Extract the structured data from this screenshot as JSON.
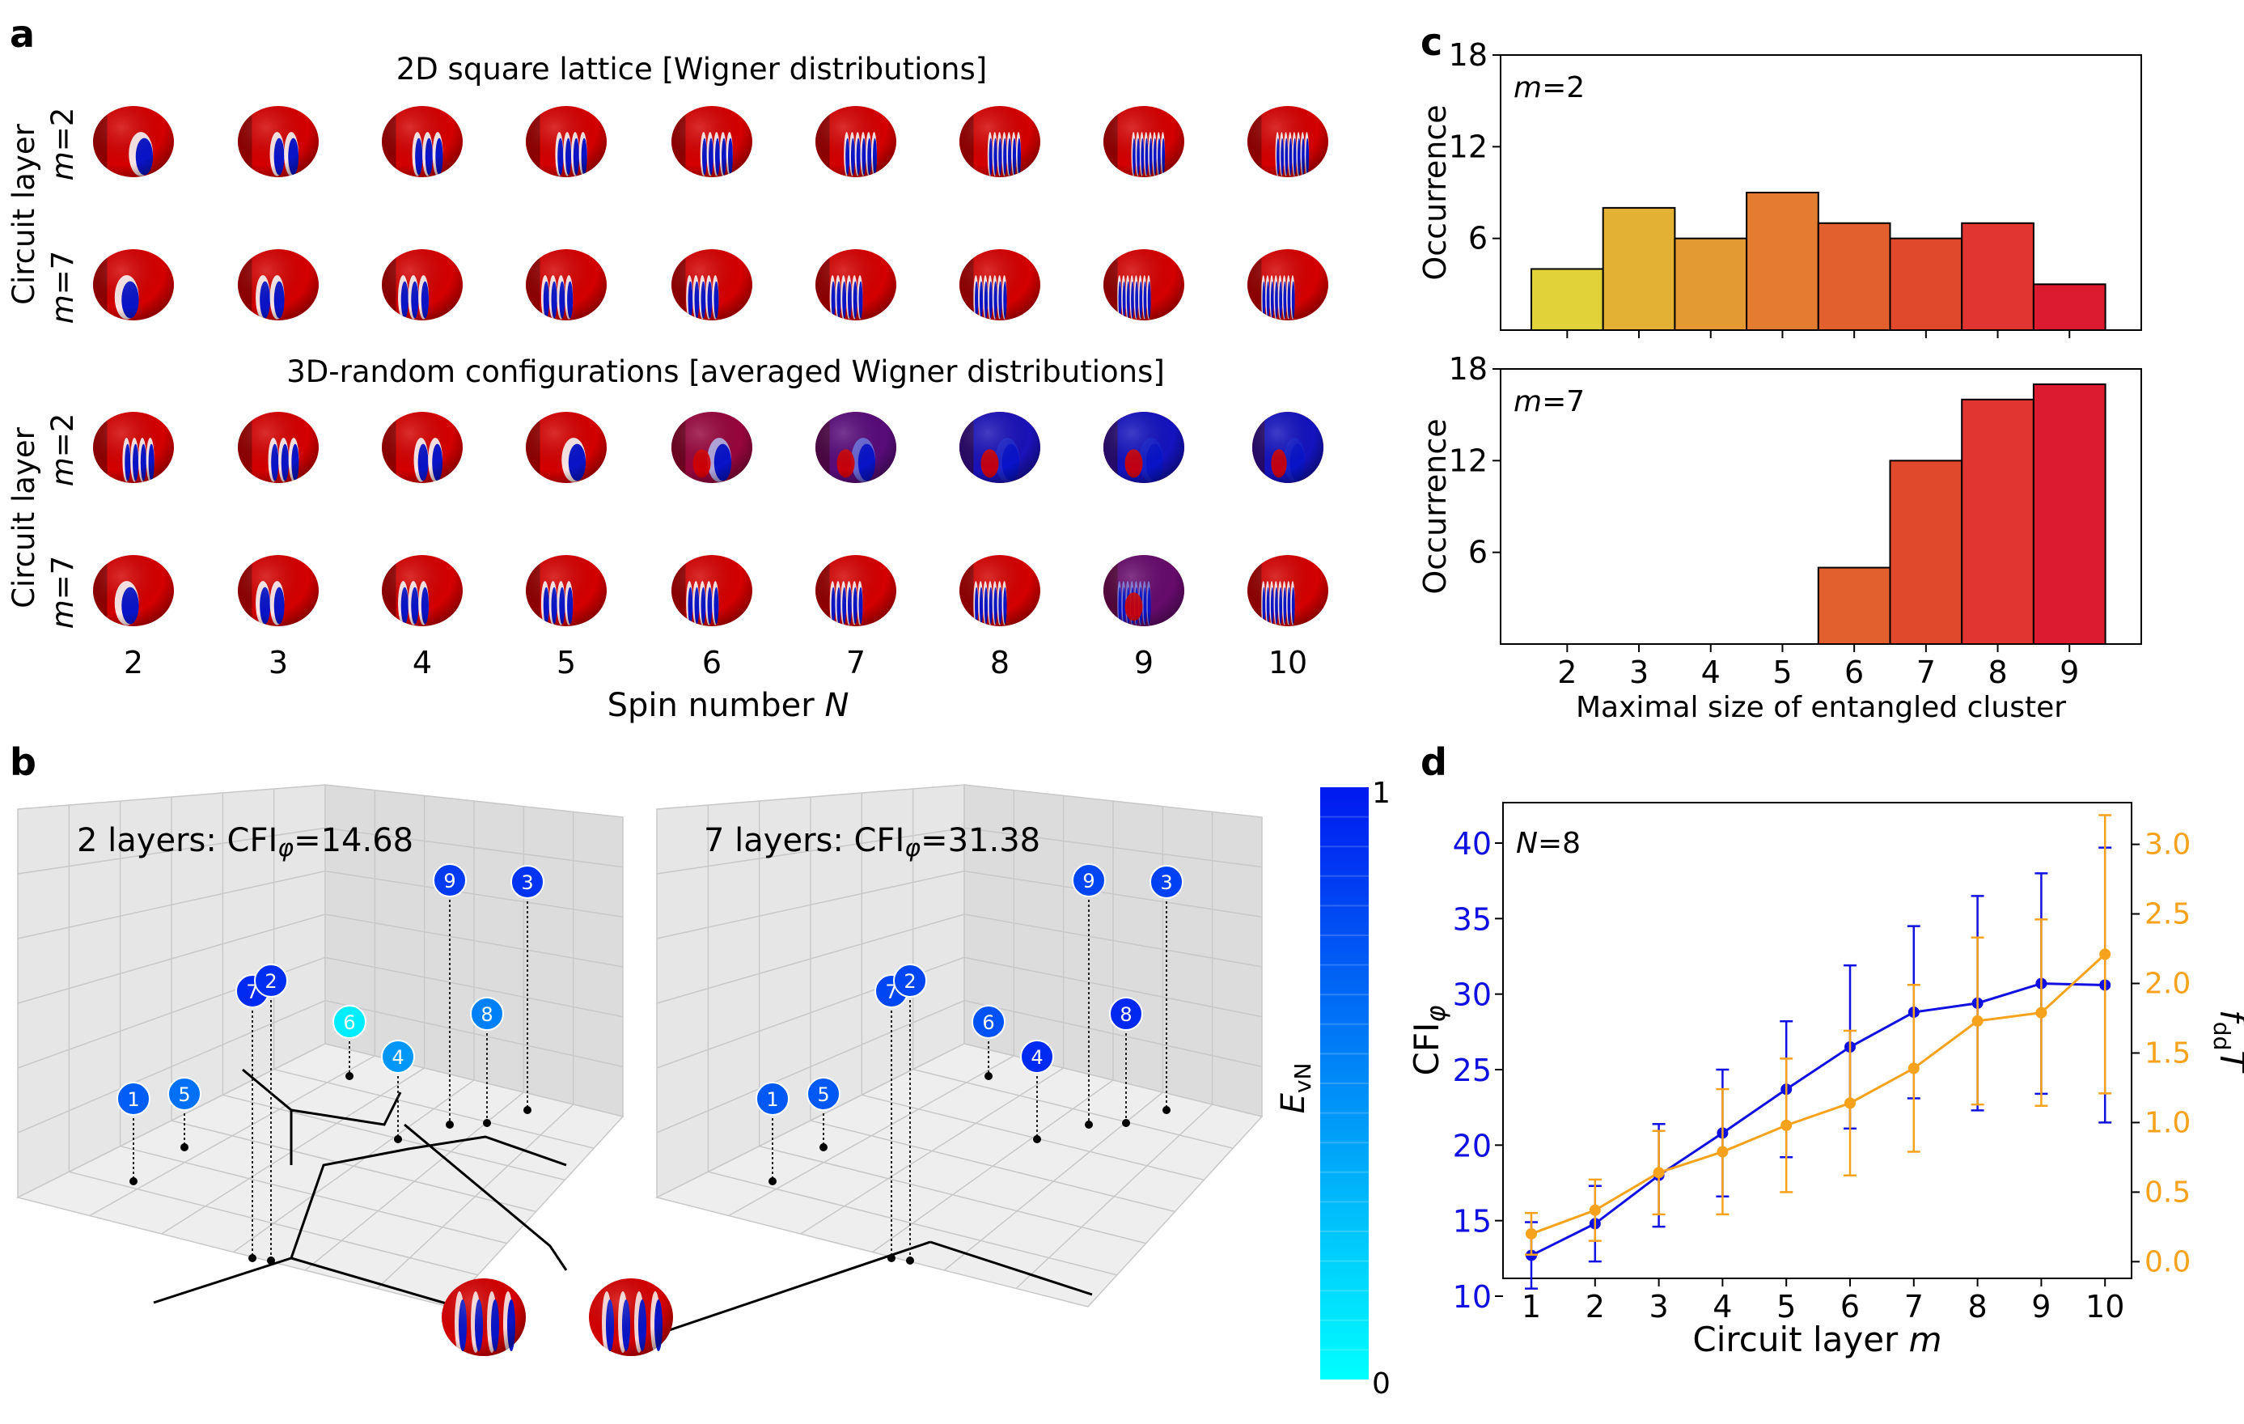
{
  "panel_labels": {
    "a": "a",
    "b": "b",
    "c": "c",
    "d": "d"
  },
  "panel_a": {
    "title_top": "2D square lattice [Wigner distributions]",
    "title_bottom": "3D-random configurations [averaged Wigner distributions]",
    "row_group_label": "Circuit layer",
    "row_labels": [
      "m=2",
      "m=7",
      "m=2",
      "m=7"
    ],
    "x_ticks": [
      "2",
      "3",
      "4",
      "5",
      "6",
      "7",
      "8",
      "9",
      "10"
    ],
    "xlabel": "Spin number ",
    "xlabel_var": "N",
    "sphere_colors": {
      "red": "#d40000",
      "blue": "#0a14c8",
      "white": "#ffffff",
      "dark": "#3a0000"
    }
  },
  "panel_b": {
    "plot1_title": "2 layers: CFI",
    "plot1_phi": "φ",
    "plot1_value": "=14.68",
    "plot2_title": "7 layers: CFI",
    "plot2_phi": "φ",
    "plot2_value": "=31.38",
    "spins_2layers": [
      {
        "label": "1",
        "E": 0.7
      },
      {
        "label": "5",
        "E": 0.62
      },
      {
        "label": "7",
        "E": 0.92
      },
      {
        "label": "2",
        "E": 0.9
      },
      {
        "label": "6",
        "E": 0.08
      },
      {
        "label": "4",
        "E": 0.45
      },
      {
        "label": "9",
        "E": 0.85
      },
      {
        "label": "3",
        "E": 0.88
      },
      {
        "label": "8",
        "E": 0.55
      }
    ],
    "spins_7layers": [
      {
        "label": "1",
        "E": 0.72
      },
      {
        "label": "5",
        "E": 0.72
      },
      {
        "label": "7",
        "E": 0.8
      },
      {
        "label": "2",
        "E": 0.8
      },
      {
        "label": "6",
        "E": 0.75
      },
      {
        "label": "4",
        "E": 0.92
      },
      {
        "label": "9",
        "E": 0.8
      },
      {
        "label": "3",
        "E": 0.82
      },
      {
        "label": "8",
        "E": 0.93
      }
    ],
    "colorbar": {
      "label": "E",
      "label_sub": "vN",
      "max_label": "1",
      "min_label": "0",
      "color_low": "#00ffff",
      "color_high": "#0018f0"
    }
  },
  "chart_data": [
    {
      "type": "bar",
      "panel": "c-top",
      "annotation_var": "m",
      "annotation_value": "=2",
      "categories": [
        "2",
        "3",
        "4",
        "5",
        "6",
        "7",
        "8",
        "9"
      ],
      "values": [
        4,
        8,
        6,
        9,
        7,
        6,
        7,
        3
      ],
      "colors": [
        "#e1d23a",
        "#e3b234",
        "#e49a32",
        "#e37c30",
        "#e2602e",
        "#e1492d",
        "#e03530",
        "#dc1a30"
      ],
      "ylabel": "Occurrence",
      "ylim": [
        0,
        18
      ],
      "yticks": [
        "6",
        "12",
        "18"
      ]
    },
    {
      "type": "bar",
      "panel": "c-bottom",
      "annotation_var": "m",
      "annotation_value": "=7",
      "categories": [
        "2",
        "3",
        "4",
        "5",
        "6",
        "7",
        "8",
        "9"
      ],
      "values": [
        0,
        0,
        0,
        0,
        5,
        12,
        16,
        17
      ],
      "colors": [
        "#e1d23a",
        "#e3b234",
        "#e49a32",
        "#e37c30",
        "#e2602e",
        "#e1492d",
        "#e03530",
        "#dc1a30"
      ],
      "ylabel": "Occurrence",
      "xlabel": "Maximal size of entangled cluster",
      "ylim": [
        0,
        18
      ],
      "yticks": [
        "6",
        "12",
        "18"
      ]
    },
    {
      "type": "line",
      "panel": "d",
      "annotation_var": "N",
      "annotation_value": "=8",
      "x": [
        1,
        2,
        3,
        4,
        5,
        6,
        7,
        8,
        9,
        10
      ],
      "xlabel": "Circuit layer ",
      "xlabel_var": "m",
      "series": [
        {
          "name": "CFI",
          "axis": "left",
          "color": "#1010e0",
          "values": [
            12.7,
            14.8,
            18.0,
            20.8,
            23.7,
            26.5,
            28.8,
            29.4,
            30.7,
            30.6
          ],
          "err": [
            2.2,
            2.5,
            3.4,
            4.2,
            4.5,
            5.4,
            5.7,
            7.1,
            7.3,
            9.1
          ]
        },
        {
          "name": "f_dd T",
          "axis": "right",
          "color": "#f7a21c",
          "values": [
            0.2,
            0.37,
            0.64,
            0.79,
            0.98,
            1.14,
            1.39,
            1.73,
            1.79,
            2.21
          ],
          "err": [
            0.15,
            0.22,
            0.3,
            0.45,
            0.48,
            0.52,
            0.6,
            0.6,
            0.67,
            1.0
          ]
        }
      ],
      "ylabel_left": "CFI",
      "ylabel_left_sub": "φ",
      "ylabel_right": "f",
      "ylabel_right_sub": "dd",
      "ylabel_right_tail": "T",
      "ylim_left": [
        10,
        41.5
      ],
      "yticks_left": [
        "10",
        "15",
        "20",
        "25",
        "30",
        "35",
        "40"
      ],
      "ylim_right": [
        -0.12,
        3.3
      ],
      "yticks_right": [
        "0.0",
        "0.5",
        "1.0",
        "1.5",
        "2.0",
        "2.5",
        "3.0"
      ],
      "xticks": [
        "1",
        "2",
        "3",
        "4",
        "5",
        "6",
        "7",
        "8",
        "9",
        "10"
      ]
    }
  ]
}
